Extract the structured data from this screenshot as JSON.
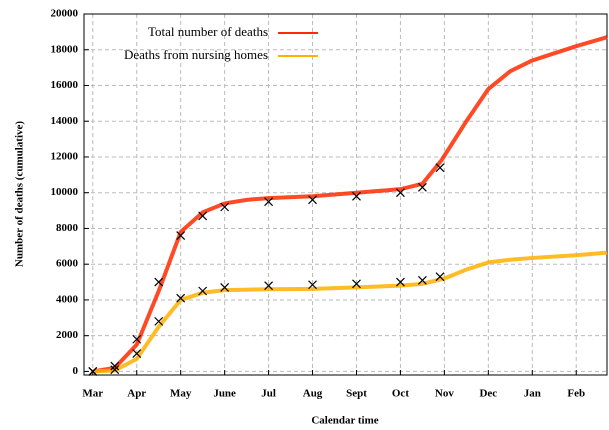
{
  "chart_data": {
    "type": "line",
    "xlabel": "Calendar time",
    "ylabel": "Number of deaths (cumulative)",
    "xlim": [
      -0.2,
      11.7
    ],
    "ylim": [
      -200,
      20000
    ],
    "xticks": [
      {
        "value": 0,
        "label": "Mar"
      },
      {
        "value": 1,
        "label": "Apr"
      },
      {
        "value": 2,
        "label": "May"
      },
      {
        "value": 3,
        "label": "June"
      },
      {
        "value": 4,
        "label": "Jul"
      },
      {
        "value": 5,
        "label": "Aug"
      },
      {
        "value": 6,
        "label": "Sept"
      },
      {
        "value": 7,
        "label": "Oct"
      },
      {
        "value": 8,
        "label": "Nov"
      },
      {
        "value": 9,
        "label": "Dec"
      },
      {
        "value": 10,
        "label": "Jan"
      },
      {
        "value": 11,
        "label": "Feb"
      }
    ],
    "yticks": [
      0,
      2000,
      4000,
      6000,
      8000,
      10000,
      12000,
      14000,
      16000,
      18000,
      20000
    ],
    "grid": true,
    "legend": "upper left",
    "series": [
      {
        "name": "Total number of deaths",
        "color": "#ff2a00",
        "x": [
          0,
          0.5,
          1,
          1.5,
          2,
          2.5,
          3,
          3.5,
          4,
          5,
          6,
          7,
          7.5,
          7.93,
          8.5,
          9,
          9.5,
          10,
          10.5,
          11,
          11.7
        ],
        "values": [
          0,
          200,
          1500,
          4500,
          7800,
          8900,
          9400,
          9600,
          9700,
          9800,
          10000,
          10200,
          10500,
          11800,
          14000,
          15800,
          16800,
          17400,
          17800,
          18200,
          18700
        ]
      },
      {
        "name": "Deaths from nursing homes",
        "color": "#ffb000",
        "x": [
          0,
          0.5,
          1,
          1.5,
          2,
          2.5,
          3,
          4,
          5,
          6,
          7,
          7.5,
          8,
          8.5,
          9,
          9.5,
          10,
          11,
          11.7
        ],
        "values": [
          0,
          50,
          700,
          2500,
          4000,
          4400,
          4550,
          4600,
          4620,
          4700,
          4800,
          4900,
          5200,
          5700,
          6100,
          6250,
          6350,
          6500,
          6650
        ]
      },
      {
        "color": "#000000",
        "marker": "x",
        "x": [
          0,
          0.5,
          1,
          1.5,
          2,
          2.5,
          3,
          4,
          5,
          6,
          7,
          7.5,
          7.9
        ],
        "values": [
          0,
          300,
          1800,
          5000,
          7600,
          8700,
          9200,
          9500,
          9600,
          9800,
          10000,
          10300,
          11400
        ]
      },
      {
        "color": "#000000",
        "marker": "x",
        "x": [
          0,
          0.5,
          1,
          1.5,
          2,
          2.5,
          3,
          4,
          5,
          6,
          7,
          7.5,
          7.9
        ],
        "values": [
          0,
          100,
          1000,
          2800,
          4100,
          4500,
          4700,
          4800,
          4850,
          4900,
          5000,
          5100,
          5300
        ]
      }
    ]
  }
}
